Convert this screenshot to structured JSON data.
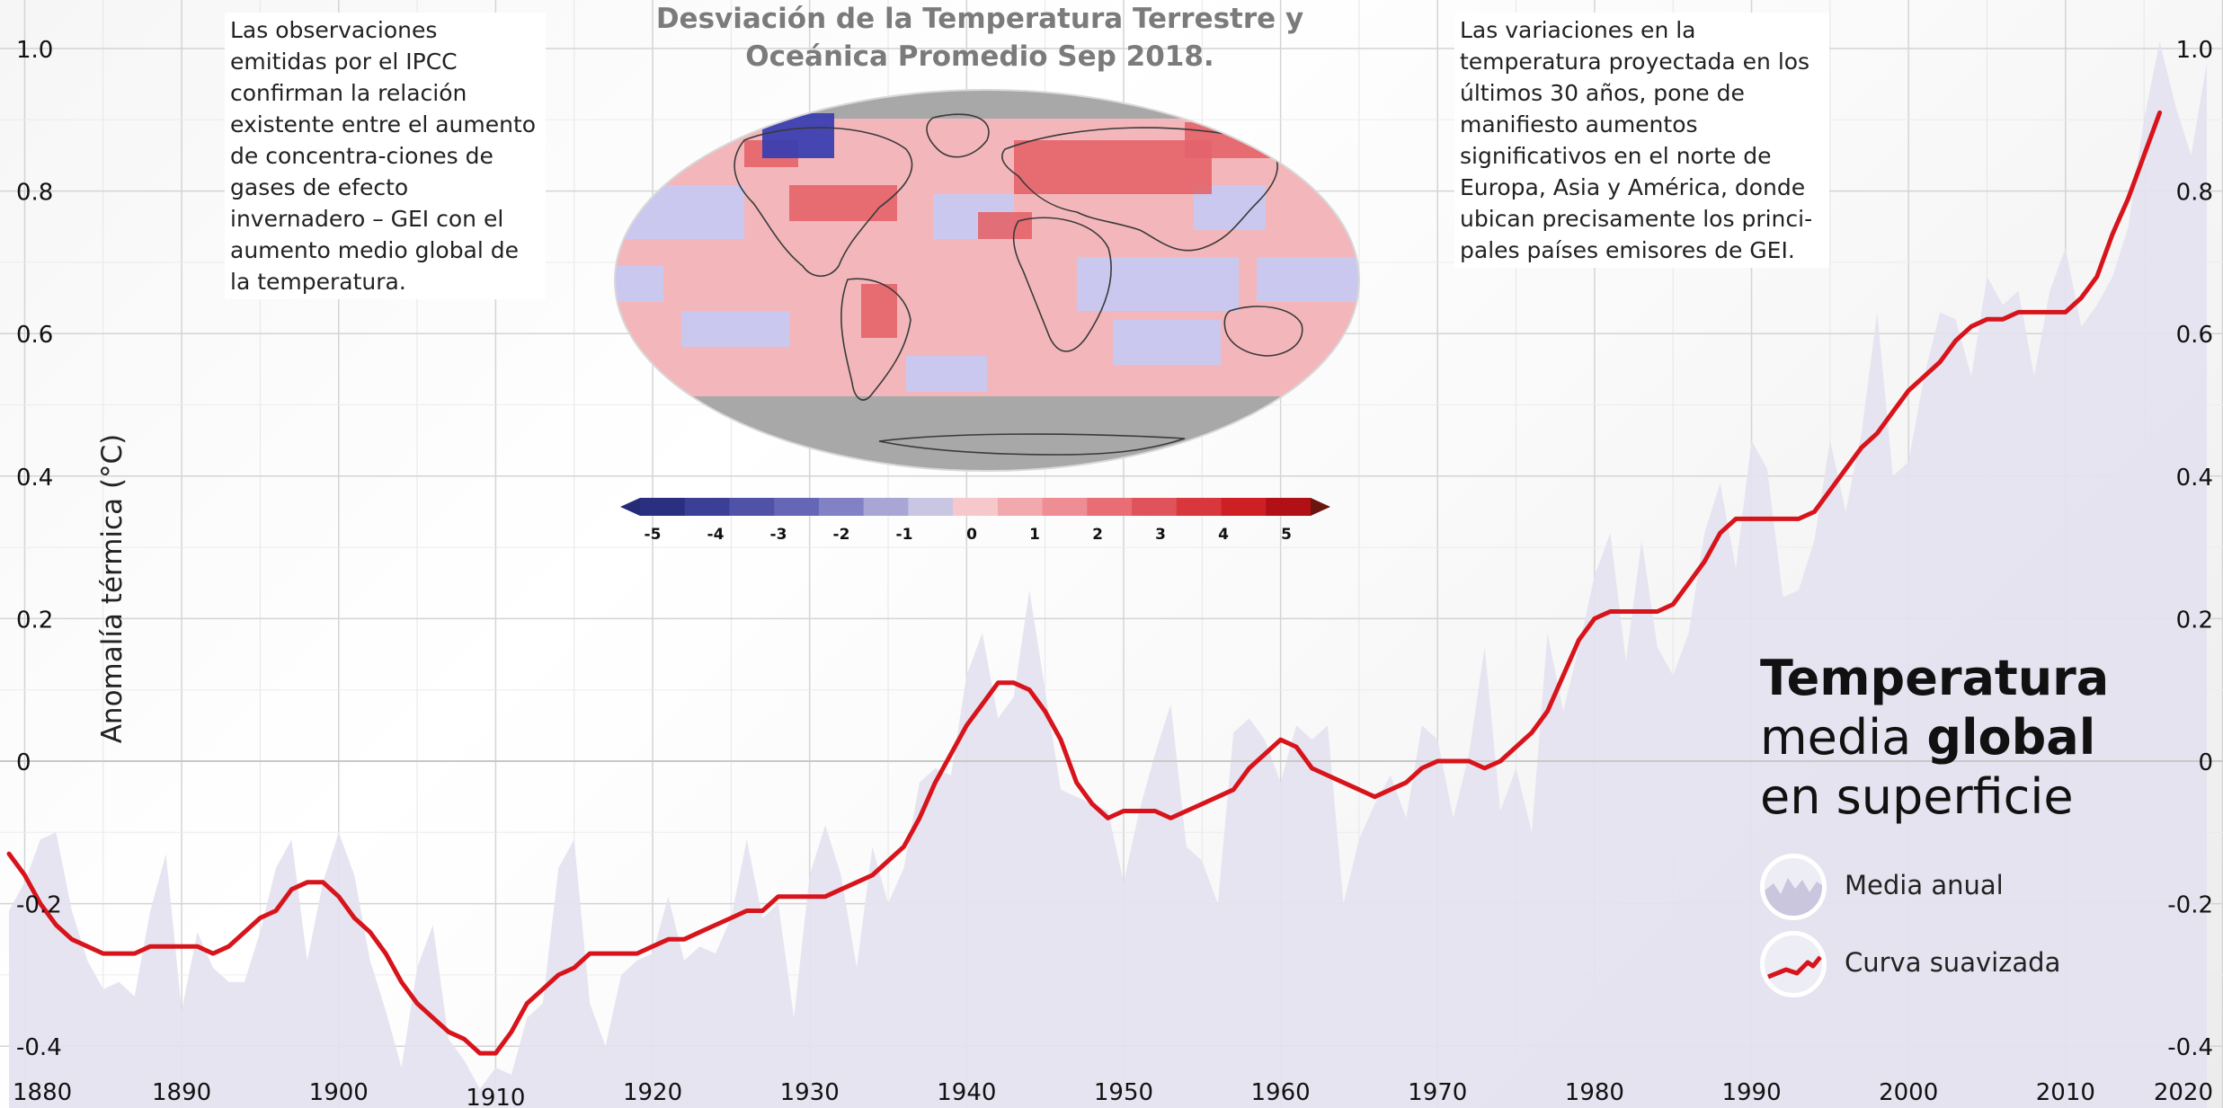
{
  "chart_data": {
    "type": "area",
    "title": "Temperatura media global en superficie",
    "title_parts": {
      "bold1": "Temperatura",
      "line2a": "media ",
      "bold2": "global",
      "line3": "en superficie"
    },
    "ylabel": "Anomalía térmica (°C)",
    "xlabel": "",
    "xlim": [
      1879,
      2019
    ],
    "ylim": [
      -0.44,
      1.0
    ],
    "x_ticks": [
      1880,
      1890,
      1900,
      1910,
      1920,
      1930,
      1940,
      1950,
      1960,
      1970,
      1980,
      1990,
      2000,
      2010,
      2020
    ],
    "y_ticks": [
      1.0,
      0.8,
      0.6,
      0.4,
      0.2,
      0,
      -0.2,
      -0.4
    ],
    "y_tick_labels": [
      "1.0",
      "0.8",
      "0.6",
      "0.4",
      "0.2",
      "0",
      "-0.2",
      "-0.4"
    ],
    "grid": true,
    "legend_position": "bottom-right",
    "series": [
      {
        "name": "Media anual",
        "kind": "area",
        "color": "#e4e2ef",
        "points": [
          [
            1879,
            -0.21
          ],
          [
            1880,
            -0.17
          ],
          [
            1881,
            -0.11
          ],
          [
            1882,
            -0.1
          ],
          [
            1883,
            -0.21
          ],
          [
            1884,
            -0.28
          ],
          [
            1885,
            -0.32
          ],
          [
            1886,
            -0.31
          ],
          [
            1887,
            -0.33
          ],
          [
            1888,
            -0.21
          ],
          [
            1889,
            -0.13
          ],
          [
            1890,
            -0.35
          ],
          [
            1891,
            -0.24
          ],
          [
            1892,
            -0.29
          ],
          [
            1893,
            -0.31
          ],
          [
            1894,
            -0.31
          ],
          [
            1895,
            -0.24
          ],
          [
            1896,
            -0.15
          ],
          [
            1897,
            -0.11
          ],
          [
            1898,
            -0.28
          ],
          [
            1899,
            -0.17
          ],
          [
            1900,
            -0.1
          ],
          [
            1901,
            -0.16
          ],
          [
            1902,
            -0.28
          ],
          [
            1903,
            -0.35
          ],
          [
            1904,
            -0.43
          ],
          [
            1905,
            -0.29
          ],
          [
            1906,
            -0.23
          ],
          [
            1907,
            -0.39
          ],
          [
            1908,
            -0.42
          ],
          [
            1909,
            -0.46
          ],
          [
            1910,
            -0.43
          ],
          [
            1911,
            -0.44
          ],
          [
            1912,
            -0.36
          ],
          [
            1913,
            -0.34
          ],
          [
            1914,
            -0.15
          ],
          [
            1915,
            -0.11
          ],
          [
            1916,
            -0.34
          ],
          [
            1917,
            -0.4
          ],
          [
            1918,
            -0.3
          ],
          [
            1919,
            -0.28
          ],
          [
            1920,
            -0.27
          ],
          [
            1921,
            -0.19
          ],
          [
            1922,
            -0.28
          ],
          [
            1923,
            -0.26
          ],
          [
            1924,
            -0.27
          ],
          [
            1925,
            -0.22
          ],
          [
            1926,
            -0.11
          ],
          [
            1927,
            -0.22
          ],
          [
            1928,
            -0.2
          ],
          [
            1929,
            -0.36
          ],
          [
            1930,
            -0.16
          ],
          [
            1931,
            -0.09
          ],
          [
            1932,
            -0.16
          ],
          [
            1933,
            -0.29
          ],
          [
            1934,
            -0.12
          ],
          [
            1935,
            -0.2
          ],
          [
            1936,
            -0.15
          ],
          [
            1937,
            -0.03
          ],
          [
            1938,
            -0.01
          ],
          [
            1939,
            -0.02
          ],
          [
            1940,
            0.12
          ],
          [
            1941,
            0.18
          ],
          [
            1942,
            0.06
          ],
          [
            1943,
            0.09
          ],
          [
            1944,
            0.24
          ],
          [
            1945,
            0.1
          ],
          [
            1946,
            -0.04
          ],
          [
            1947,
            -0.05
          ],
          [
            1948,
            -0.06
          ],
          [
            1949,
            -0.07
          ],
          [
            1950,
            -0.17
          ],
          [
            1951,
            -0.07
          ],
          [
            1952,
            0.01
          ],
          [
            1953,
            0.08
          ],
          [
            1954,
            -0.12
          ],
          [
            1955,
            -0.14
          ],
          [
            1956,
            -0.2
          ],
          [
            1957,
            0.04
          ],
          [
            1958,
            0.06
          ],
          [
            1959,
            0.03
          ],
          [
            1960,
            -0.03
          ],
          [
            1961,
            0.05
          ],
          [
            1962,
            0.03
          ],
          [
            1963,
            0.05
          ],
          [
            1964,
            -0.2
          ],
          [
            1965,
            -0.11
          ],
          [
            1966,
            -0.06
          ],
          [
            1967,
            -0.02
          ],
          [
            1968,
            -0.08
          ],
          [
            1969,
            0.05
          ],
          [
            1970,
            0.03
          ],
          [
            1971,
            -0.08
          ],
          [
            1972,
            0.01
          ],
          [
            1973,
            0.16
          ],
          [
            1974,
            -0.07
          ],
          [
            1975,
            -0.01
          ],
          [
            1976,
            -0.1
          ],
          [
            1977,
            0.18
          ],
          [
            1978,
            0.07
          ],
          [
            1979,
            0.16
          ],
          [
            1980,
            0.26
          ],
          [
            1981,
            0.32
          ],
          [
            1982,
            0.14
          ],
          [
            1983,
            0.31
          ],
          [
            1984,
            0.16
          ],
          [
            1985,
            0.12
          ],
          [
            1986,
            0.18
          ],
          [
            1987,
            0.32
          ],
          [
            1988,
            0.39
          ],
          [
            1989,
            0.27
          ],
          [
            1990,
            0.45
          ],
          [
            1991,
            0.41
          ],
          [
            1992,
            0.23
          ],
          [
            1993,
            0.24
          ],
          [
            1994,
            0.31
          ],
          [
            1995,
            0.45
          ],
          [
            1996,
            0.35
          ],
          [
            1997,
            0.46
          ],
          [
            1998,
            0.63
          ],
          [
            1999,
            0.4
          ],
          [
            2000,
            0.42
          ],
          [
            2001,
            0.54
          ],
          [
            2002,
            0.63
          ],
          [
            2003,
            0.62
          ],
          [
            2004,
            0.54
          ],
          [
            2005,
            0.68
          ],
          [
            2006,
            0.64
          ],
          [
            2007,
            0.66
          ],
          [
            2008,
            0.54
          ],
          [
            2009,
            0.66
          ],
          [
            2010,
            0.72
          ],
          [
            2011,
            0.61
          ],
          [
            2012,
            0.64
          ],
          [
            2013,
            0.68
          ],
          [
            2014,
            0.75
          ],
          [
            2015,
            0.9
          ],
          [
            2016,
            1.01
          ],
          [
            2017,
            0.92
          ],
          [
            2018,
            0.85
          ],
          [
            2019,
            0.98
          ]
        ]
      },
      {
        "name": "Curva suavizada",
        "kind": "line",
        "color": "#d7141b",
        "points": [
          [
            1879,
            -0.13
          ],
          [
            1880,
            -0.16
          ],
          [
            1881,
            -0.2
          ],
          [
            1882,
            -0.23
          ],
          [
            1883,
            -0.25
          ],
          [
            1884,
            -0.26
          ],
          [
            1885,
            -0.27
          ],
          [
            1886,
            -0.27
          ],
          [
            1887,
            -0.27
          ],
          [
            1888,
            -0.26
          ],
          [
            1889,
            -0.26
          ],
          [
            1890,
            -0.26
          ],
          [
            1891,
            -0.26
          ],
          [
            1892,
            -0.27
          ],
          [
            1893,
            -0.26
          ],
          [
            1894,
            -0.24
          ],
          [
            1895,
            -0.22
          ],
          [
            1896,
            -0.21
          ],
          [
            1897,
            -0.18
          ],
          [
            1898,
            -0.17
          ],
          [
            1899,
            -0.17
          ],
          [
            1900,
            -0.19
          ],
          [
            1901,
            -0.22
          ],
          [
            1902,
            -0.24
          ],
          [
            1903,
            -0.27
          ],
          [
            1904,
            -0.31
          ],
          [
            1905,
            -0.34
          ],
          [
            1906,
            -0.36
          ],
          [
            1907,
            -0.38
          ],
          [
            1908,
            -0.39
          ],
          [
            1909,
            -0.41
          ],
          [
            1910,
            -0.41
          ],
          [
            1911,
            -0.38
          ],
          [
            1912,
            -0.34
          ],
          [
            1913,
            -0.32
          ],
          [
            1914,
            -0.3
          ],
          [
            1915,
            -0.29
          ],
          [
            1916,
            -0.27
          ],
          [
            1917,
            -0.27
          ],
          [
            1918,
            -0.27
          ],
          [
            1919,
            -0.27
          ],
          [
            1920,
            -0.26
          ],
          [
            1921,
            -0.25
          ],
          [
            1922,
            -0.25
          ],
          [
            1923,
            -0.24
          ],
          [
            1924,
            -0.23
          ],
          [
            1925,
            -0.22
          ],
          [
            1926,
            -0.21
          ],
          [
            1927,
            -0.21
          ],
          [
            1928,
            -0.19
          ],
          [
            1929,
            -0.19
          ],
          [
            1930,
            -0.19
          ],
          [
            1931,
            -0.19
          ],
          [
            1932,
            -0.18
          ],
          [
            1933,
            -0.17
          ],
          [
            1934,
            -0.16
          ],
          [
            1935,
            -0.14
          ],
          [
            1936,
            -0.12
          ],
          [
            1937,
            -0.08
          ],
          [
            1938,
            -0.03
          ],
          [
            1939,
            0.01
          ],
          [
            1940,
            0.05
          ],
          [
            1941,
            0.08
          ],
          [
            1942,
            0.11
          ],
          [
            1943,
            0.11
          ],
          [
            1944,
            0.1
          ],
          [
            1945,
            0.07
          ],
          [
            1946,
            0.03
          ],
          [
            1947,
            -0.03
          ],
          [
            1948,
            -0.06
          ],
          [
            1949,
            -0.08
          ],
          [
            1950,
            -0.07
          ],
          [
            1951,
            -0.07
          ],
          [
            1952,
            -0.07
          ],
          [
            1953,
            -0.08
          ],
          [
            1954,
            -0.07
          ],
          [
            1955,
            -0.06
          ],
          [
            1956,
            -0.05
          ],
          [
            1957,
            -0.04
          ],
          [
            1958,
            -0.01
          ],
          [
            1959,
            0.01
          ],
          [
            1960,
            0.03
          ],
          [
            1961,
            0.02
          ],
          [
            1962,
            -0.01
          ],
          [
            1963,
            -0.02
          ],
          [
            1964,
            -0.03
          ],
          [
            1965,
            -0.04
          ],
          [
            1966,
            -0.05
          ],
          [
            1967,
            -0.04
          ],
          [
            1968,
            -0.03
          ],
          [
            1969,
            -0.01
          ],
          [
            1970,
            0.0
          ],
          [
            1971,
            0.0
          ],
          [
            1972,
            0.0
          ],
          [
            1973,
            -0.01
          ],
          [
            1974,
            0.0
          ],
          [
            1975,
            0.02
          ],
          [
            1976,
            0.04
          ],
          [
            1977,
            0.07
          ],
          [
            1978,
            0.12
          ],
          [
            1979,
            0.17
          ],
          [
            1980,
            0.2
          ],
          [
            1981,
            0.21
          ],
          [
            1982,
            0.21
          ],
          [
            1983,
            0.21
          ],
          [
            1984,
            0.21
          ],
          [
            1985,
            0.22
          ],
          [
            1986,
            0.25
          ],
          [
            1987,
            0.28
          ],
          [
            1988,
            0.32
          ],
          [
            1989,
            0.34
          ],
          [
            1990,
            0.34
          ],
          [
            1991,
            0.34
          ],
          [
            1992,
            0.34
          ],
          [
            1993,
            0.34
          ],
          [
            1994,
            0.35
          ],
          [
            1995,
            0.38
          ],
          [
            1996,
            0.41
          ],
          [
            1997,
            0.44
          ],
          [
            1998,
            0.46
          ],
          [
            1999,
            0.49
          ],
          [
            2000,
            0.52
          ],
          [
            2001,
            0.54
          ],
          [
            2002,
            0.56
          ],
          [
            2003,
            0.59
          ],
          [
            2004,
            0.61
          ],
          [
            2005,
            0.62
          ],
          [
            2006,
            0.62
          ],
          [
            2007,
            0.63
          ],
          [
            2008,
            0.63
          ],
          [
            2009,
            0.63
          ],
          [
            2010,
            0.63
          ],
          [
            2011,
            0.65
          ],
          [
            2012,
            0.68
          ],
          [
            2013,
            0.74
          ],
          [
            2014,
            0.79
          ],
          [
            2015,
            0.85
          ],
          [
            2016,
            0.91
          ]
        ]
      }
    ]
  },
  "inset": {
    "title_line1": "Desviación de la Temperatura Terrestre y",
    "title_line2": "Oceánica Promedio Sep 2018.",
    "colorbar_ticks": [
      "-5",
      "-4",
      "-3",
      "-2",
      "-1",
      "0",
      "1",
      "2",
      "3",
      "4",
      "5"
    ],
    "colorbar_colors": [
      "#2a2f80",
      "#3b3f95",
      "#4f52a6",
      "#6566b5",
      "#8281c6",
      "#a9a6d6",
      "#c9c6e4",
      "#f7c8cb",
      "#f2a9ae",
      "#ee8d93",
      "#e86d74",
      "#e0535a",
      "#d8373e",
      "#ce1f25",
      "#b01016"
    ],
    "colorbar_end_colors": {
      "low": "#262b78",
      "high": "#6b1511"
    },
    "map_colors": {
      "land_ocean_base": "#f3b7bb",
      "cold": "#c8c8f2",
      "strong_cold": "#3b3fb0",
      "hot": "#e4646a",
      "no_data": "#a8a8a8"
    }
  },
  "notes": {
    "left": "Las observaciones emitidas por el IPCC confirman la relación existente entre el aumento de concentra-ciones de gases de efecto invernadero – GEI con el aumento medio global de la temperatura.",
    "right": "Las variaciones en la temperatura proyectada en los últimos 30 años, pone de manifiesto aumentos significativos en el norte de Europa, Asia y América, donde ubican precisamente los princi-pales países emisores de GEI."
  },
  "legend": {
    "annual_label": "Media anual",
    "smooth_label": "Curva suavizada"
  }
}
